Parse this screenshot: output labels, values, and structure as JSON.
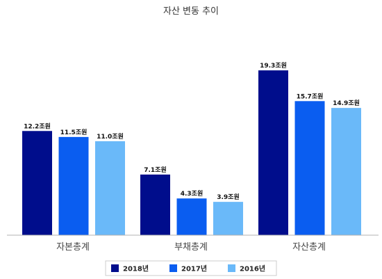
{
  "chart_data": {
    "type": "bar",
    "title": "자산 변동 추이",
    "categories": [
      "자본총계",
      "부채총계",
      "자산총계"
    ],
    "series": [
      {
        "name": "2018년",
        "color": "#000d8c",
        "values": [
          12.2,
          7.1,
          19.3
        ],
        "labels": [
          "12.2조원",
          "7.1조원",
          "19.3조원"
        ]
      },
      {
        "name": "2017년",
        "color": "#0a5df0",
        "values": [
          11.5,
          4.3,
          15.7
        ],
        "labels": [
          "11.5조원",
          "4.3조원",
          "15.7조원"
        ]
      },
      {
        "name": "2016년",
        "color": "#6ab9f9",
        "values": [
          11.0,
          3.9,
          14.9
        ],
        "labels": [
          "11.0조원",
          "3.9조원",
          "14.9조원"
        ]
      }
    ],
    "ylim": [
      0,
      22
    ],
    "grid": false,
    "legend_position": "bottom"
  }
}
